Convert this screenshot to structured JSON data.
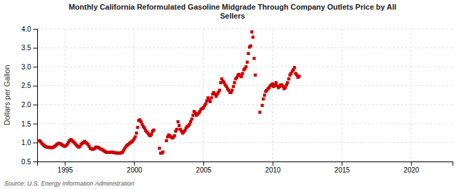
{
  "chart_data": {
    "type": "scatter",
    "title": "Monthly California Reformulated Gasoline Midgrade Through Company Outlets Price by All\nSellers",
    "ylabel": "Dollars per Gallon",
    "annotations": [
      "Source: U.S. Energy Information Administration"
    ],
    "color": "#cc0000",
    "marker": "square",
    "grid": true,
    "xlim": [
      1993.0,
      2023.0
    ],
    "ylim": [
      0.5,
      4.0
    ],
    "xticks": [
      1995,
      2000,
      2005,
      2010,
      2015,
      2020
    ],
    "yticks": [
      0.5,
      {
        "value": 1.0,
        "label": "1.0"
      },
      1.5,
      {
        "value": 2.0,
        "label": "2.0"
      },
      2.5,
      {
        "value": 3.0,
        "label": "3.0"
      },
      3.5,
      {
        "value": 4.0,
        "label": "4.0"
      }
    ],
    "x": [
      1993.17,
      1993.25,
      1993.33,
      1993.42,
      1993.5,
      1993.58,
      1993.67,
      1993.75,
      1993.83,
      1993.92,
      1994.0,
      1994.08,
      1994.17,
      1994.25,
      1994.33,
      1994.42,
      1994.5,
      1994.58,
      1994.67,
      1994.75,
      1994.83,
      1994.92,
      1995.0,
      1995.08,
      1995.17,
      1995.25,
      1995.33,
      1995.42,
      1995.5,
      1995.58,
      1995.67,
      1995.75,
      1995.83,
      1995.92,
      1996.0,
      1996.08,
      1996.17,
      1996.25,
      1996.33,
      1996.42,
      1996.5,
      1996.58,
      1996.67,
      1996.75,
      1996.83,
      1996.92,
      1997.0,
      1997.08,
      1997.17,
      1997.25,
      1997.33,
      1997.42,
      1997.5,
      1997.58,
      1997.67,
      1997.75,
      1997.83,
      1997.92,
      1998.0,
      1998.08,
      1998.17,
      1998.25,
      1998.33,
      1998.42,
      1998.5,
      1998.58,
      1998.67,
      1998.75,
      1998.83,
      1998.92,
      1999.0,
      1999.08,
      1999.17,
      1999.25,
      1999.33,
      1999.42,
      1999.5,
      1999.58,
      1999.67,
      1999.75,
      1999.83,
      1999.92,
      2000.0,
      2000.08,
      2000.17,
      2000.25,
      2000.33,
      2000.42,
      2000.5,
      2000.58,
      2000.67,
      2000.75,
      2000.83,
      2000.92,
      2001.0,
      2001.08,
      2001.17,
      2001.25,
      2001.33,
      2001.42,
      2001.83,
      2001.92,
      2002.0,
      2002.08,
      2002.33,
      2002.42,
      2002.5,
      2002.58,
      2002.67,
      2002.75,
      2002.83,
      2002.92,
      2003.0,
      2003.08,
      2003.17,
      2003.25,
      2003.33,
      2003.42,
      2003.5,
      2003.58,
      2003.67,
      2003.75,
      2003.83,
      2003.92,
      2004.0,
      2004.08,
      2004.17,
      2004.25,
      2004.33,
      2004.42,
      2004.5,
      2004.58,
      2004.67,
      2004.75,
      2004.83,
      2004.92,
      2005.0,
      2005.08,
      2005.17,
      2005.25,
      2005.33,
      2005.42,
      2005.5,
      2005.58,
      2005.67,
      2005.75,
      2005.83,
      2005.92,
      2006.0,
      2006.08,
      2006.17,
      2006.25,
      2006.33,
      2006.42,
      2006.5,
      2006.58,
      2006.67,
      2006.75,
      2006.83,
      2006.92,
      2007.0,
      2007.08,
      2007.17,
      2007.25,
      2007.33,
      2007.42,
      2007.5,
      2007.58,
      2007.67,
      2007.75,
      2007.83,
      2007.92,
      2008.0,
      2008.08,
      2008.17,
      2008.25,
      2008.33,
      2008.42,
      2008.5,
      2008.58,
      2008.67,
      2008.75,
      2009.08,
      2009.25,
      2009.33,
      2009.42,
      2009.5,
      2009.58,
      2009.67,
      2009.75,
      2009.83,
      2009.92,
      2010.0,
      2010.08,
      2010.17,
      2010.25,
      2010.33,
      2010.42,
      2010.5,
      2010.58,
      2010.67,
      2010.75,
      2010.83,
      2010.92,
      2011.0,
      2011.08,
      2011.17,
      2011.25,
      2011.33,
      2011.42,
      2011.5,
      2011.58,
      2011.67,
      2011.75,
      2011.83,
      2011.92
    ],
    "values": [
      1.05,
      1.02,
      0.98,
      0.95,
      0.92,
      0.9,
      0.88,
      0.88,
      0.88,
      0.87,
      0.86,
      0.87,
      0.88,
      0.9,
      0.92,
      0.95,
      0.97,
      0.98,
      0.97,
      0.95,
      0.93,
      0.91,
      0.9,
      0.92,
      0.95,
      1.0,
      1.05,
      1.08,
      1.06,
      1.03,
      1.0,
      0.97,
      0.93,
      0.9,
      0.88,
      0.9,
      0.95,
      0.98,
      1.0,
      1.03,
      1.0,
      0.98,
      0.95,
      0.9,
      0.85,
      0.83,
      0.82,
      0.83,
      0.85,
      0.88,
      0.88,
      0.87,
      0.85,
      0.83,
      0.82,
      0.8,
      0.78,
      0.76,
      0.74,
      0.74,
      0.74,
      0.74,
      0.75,
      0.75,
      0.74,
      0.73,
      0.73,
      0.72,
      0.72,
      0.72,
      0.72,
      0.73,
      0.75,
      0.8,
      0.85,
      0.9,
      0.93,
      0.95,
      0.98,
      1.0,
      1.02,
      1.05,
      1.1,
      1.15,
      1.25,
      1.4,
      1.58,
      1.6,
      1.55,
      1.48,
      1.42,
      1.38,
      1.32,
      1.28,
      1.25,
      1.2,
      1.18,
      1.22,
      1.3,
      1.33,
      0.85,
      0.72,
      0.72,
      0.75,
      1.05,
      1.15,
      1.2,
      1.18,
      1.15,
      1.12,
      1.14,
      1.18,
      1.3,
      1.35,
      1.55,
      1.45,
      1.35,
      1.3,
      1.25,
      1.28,
      1.32,
      1.38,
      1.42,
      1.44,
      1.48,
      1.55,
      1.62,
      1.72,
      1.82,
      1.78,
      1.72,
      1.75,
      1.78,
      1.82,
      1.88,
      1.9,
      1.92,
      1.97,
      2.02,
      2.1,
      2.18,
      2.12,
      2.08,
      2.18,
      2.28,
      2.32,
      2.28,
      2.22,
      2.28,
      2.32,
      2.38,
      2.58,
      2.68,
      2.62,
      2.58,
      2.52,
      2.48,
      2.42,
      2.38,
      2.32,
      2.32,
      2.38,
      2.48,
      2.58,
      2.68,
      2.72,
      2.78,
      2.8,
      2.76,
      2.74,
      2.82,
      2.92,
      2.95,
      3.0,
      3.12,
      3.35,
      3.52,
      3.55,
      3.92,
      3.78,
      3.22,
      2.78,
      1.8,
      1.98,
      2.15,
      2.25,
      2.35,
      2.38,
      2.42,
      2.45,
      2.5,
      2.52,
      2.55,
      2.48,
      2.52,
      2.58,
      2.5,
      2.45,
      2.48,
      2.52,
      2.52,
      2.48,
      2.42,
      2.45,
      2.52,
      2.58,
      2.68,
      2.78,
      2.82,
      2.88,
      2.92,
      2.98,
      2.82,
      2.78,
      2.72,
      2.75
    ]
  }
}
